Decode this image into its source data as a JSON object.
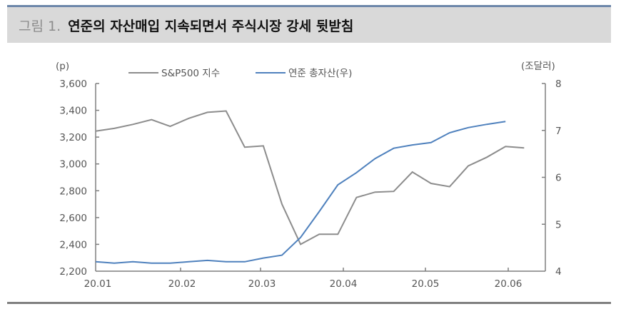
{
  "header": {
    "figure_label": "그림 1.",
    "title": "연준의 자산매입 지속되면서 주식시장 강세 뒷받침"
  },
  "chart": {
    "left_unit": "(p)",
    "right_unit": "(조달러)",
    "legend": [
      {
        "label": "S&P500 지수",
        "color": "#8c8c8c"
      },
      {
        "label": "연준 총자산(우)",
        "color": "#4f81bd"
      }
    ],
    "left_ticks": [
      "3,600",
      "3,400",
      "3,200",
      "3,000",
      "2,800",
      "2,600",
      "2,400",
      "2,200"
    ],
    "right_ticks": [
      "8",
      "7",
      "6",
      "5",
      "4"
    ],
    "x_ticks": [
      "20.01",
      "20.02",
      "20.03",
      "20.04",
      "20.05",
      "20.06"
    ]
  },
  "chart_data": {
    "type": "line",
    "title": "연준의 자산매입 지속되면서 주식시장 강세 뒷받침",
    "xlabel": "",
    "ylabel": "(p)",
    "ylabel_right": "(조달러)",
    "ylim": [
      2200,
      3600
    ],
    "ylim_right": [
      4,
      8
    ],
    "x_ticks": [
      "20.01",
      "20.02",
      "20.03",
      "20.04",
      "20.05",
      "20.06"
    ],
    "legend_position": "top",
    "grid": false,
    "series": [
      {
        "name": "S&P500 지수",
        "axis": "left",
        "color": "#8c8c8c",
        "x_index": [
          0,
          1,
          2,
          3,
          4,
          5,
          6,
          7,
          8,
          9,
          10,
          11,
          12,
          13,
          14,
          15,
          16,
          17,
          18,
          19,
          20,
          21,
          22,
          23
        ],
        "values": [
          3245,
          3265,
          3295,
          3330,
          3280,
          3340,
          3385,
          3395,
          3125,
          3135,
          2700,
          2400,
          2475,
          2475,
          2750,
          2790,
          2795,
          2940,
          2855,
          2830,
          2985,
          3050,
          3130,
          3120
        ]
      },
      {
        "name": "연준 총자산(우)",
        "axis": "right",
        "color": "#4f81bd",
        "x_index": [
          0,
          1,
          2,
          3,
          4,
          5,
          6,
          7,
          8,
          9,
          10,
          11,
          12,
          13,
          14,
          15,
          16,
          17,
          18,
          19,
          20,
          21,
          22
        ],
        "values": [
          4.2,
          4.17,
          4.2,
          4.17,
          4.17,
          4.2,
          4.23,
          4.2,
          4.2,
          4.28,
          4.34,
          4.72,
          5.27,
          5.84,
          6.1,
          6.4,
          6.62,
          6.69,
          6.74,
          6.95,
          7.06,
          7.13,
          7.19
        ]
      }
    ]
  }
}
